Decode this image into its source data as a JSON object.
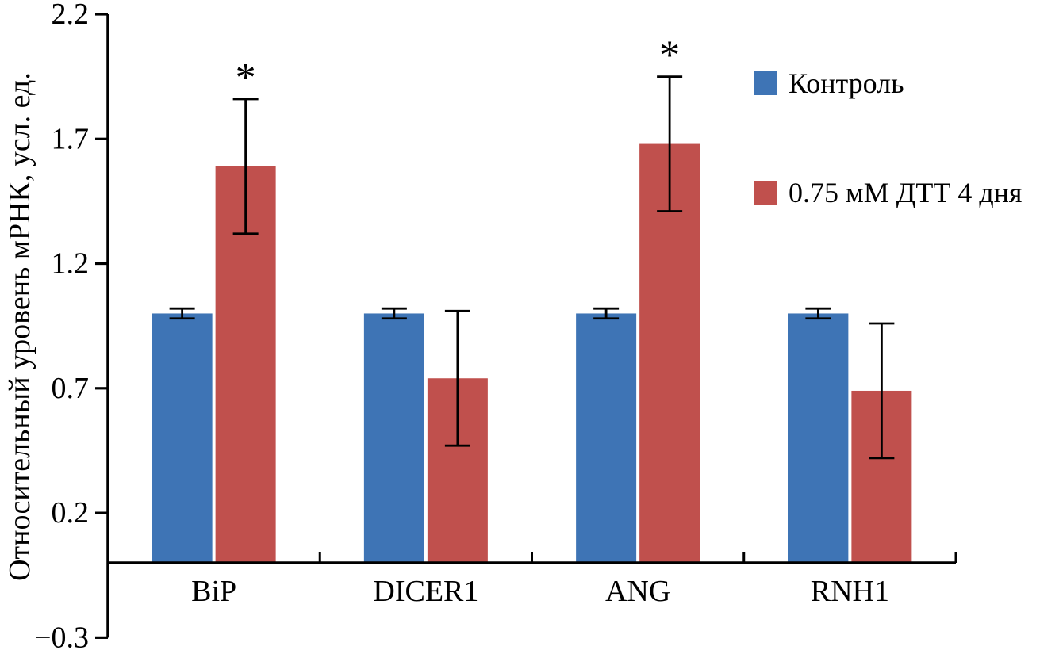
{
  "figure": {
    "background": "#ffffff",
    "axis_color": "#000000",
    "errorbar_color": "#000000"
  },
  "chart_data": {
    "type": "bar",
    "title": "",
    "xlabel": "",
    "ylabel": "Относительный уровень мРНК, усл. ед.",
    "categories": [
      "BiP",
      "DICER1",
      "ANG",
      "RNH1"
    ],
    "series": [
      {
        "name": "Контроль",
        "color": "#3E74B5",
        "values": [
          1.0,
          1.0,
          1.0,
          1.0
        ],
        "errors": [
          0.02,
          0.02,
          0.02,
          0.02
        ],
        "significance": [
          "",
          "",
          "",
          ""
        ]
      },
      {
        "name": "0.75 мМ ДТТ 4 дня",
        "color": "#C0504D",
        "values": [
          1.59,
          0.74,
          1.68,
          0.69
        ],
        "errors": [
          0.27,
          0.27,
          0.27,
          0.27
        ],
        "significance": [
          "*",
          "",
          "*",
          ""
        ]
      }
    ],
    "ylim": [
      -0.3,
      2.2
    ],
    "baseline_value": 0,
    "yticks": [
      2.2,
      1.7,
      1.2,
      0.7,
      0.2,
      -0.3
    ],
    "ytick_labels": [
      "2.2",
      "1.7",
      "1.2",
      "0.7",
      "0.2",
      "−0.3"
    ],
    "grid": false,
    "legend_position": "upper right",
    "significance_marker": "*"
  }
}
